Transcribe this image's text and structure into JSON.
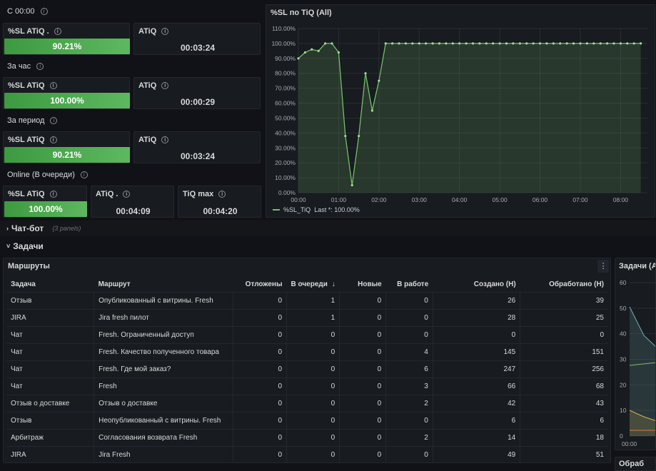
{
  "rows": {
    "since_midnight": "С 00:00",
    "per_hour": "За час",
    "per_period": "За период",
    "online": "Online (В очереди)"
  },
  "stats": {
    "r1_sl_title": "%SL ATiQ .",
    "r1_sl_value": "90.21%",
    "r1_sl_fill": 0.9021,
    "r1_atiq_title": "ATiQ",
    "r1_atiq_value": "00:03:24",
    "r2_sl_title": "%SL ATiQ",
    "r2_sl_value": "100.00%",
    "r2_sl_fill": 1.0,
    "r2_atiq_title": "ATiQ",
    "r2_atiq_value": "00:00:29",
    "r3_sl_title": "%SL ATiQ",
    "r3_sl_value": "90.21%",
    "r3_sl_fill": 0.9021,
    "r3_atiq_title": "ATiQ",
    "r3_atiq_value": "00:03:24",
    "r4_sl_title": "%SL ATiQ",
    "r4_sl_value": "100.00%",
    "r4_sl_fill": 1.0,
    "r4_atiq_title": "ATiQ .",
    "r4_atiq_value": "00:04:09",
    "r4_tiqmax_title": "TiQ max",
    "r4_tiqmax_value": "00:04:20"
  },
  "sl_chart": {
    "title": "%SL по TiQ (All)",
    "legend": "%SL_TiQ",
    "legend_last": "Last *: 100.00%"
  },
  "chart_data": {
    "type": "line",
    "title": "%SL по TiQ (All)",
    "xlabel": "",
    "ylabel": "",
    "x_ticks": [
      "00:00",
      "01:00",
      "02:00",
      "03:00",
      "04:00",
      "05:00",
      "06:00",
      "07:00",
      "08:00"
    ],
    "y_ticks": [
      "0.00%",
      "10.00%",
      "20.00%",
      "30.00%",
      "40.00%",
      "50.00%",
      "60.00%",
      "70.00%",
      "80.00%",
      "90.00%",
      "100.00%",
      "110.00%"
    ],
    "ylim": [
      0,
      110
    ],
    "xlim_minutes": [
      0,
      520
    ],
    "series": [
      {
        "name": "%SL_TiQ",
        "color": "#73bf69",
        "x_minutes": [
          0,
          10,
          20,
          30,
          40,
          50,
          60,
          70,
          80,
          90,
          100,
          110,
          120,
          130,
          140,
          150,
          160,
          170,
          180,
          190,
          200,
          210,
          220,
          230,
          240,
          250,
          260,
          270,
          280,
          290,
          300,
          310,
          320,
          330,
          340,
          350,
          360,
          370,
          380,
          390,
          400,
          410,
          420,
          430,
          440,
          450,
          460,
          470,
          480,
          490,
          500,
          510
        ],
        "values": [
          90,
          94,
          96,
          95,
          100,
          100,
          94,
          38,
          5,
          38,
          80,
          55,
          75,
          100,
          100,
          100,
          100,
          100,
          100,
          100,
          100,
          100,
          100,
          100,
          100,
          100,
          100,
          100,
          100,
          100,
          100,
          100,
          100,
          100,
          100,
          100,
          100,
          100,
          100,
          100,
          100,
          100,
          100,
          100,
          100,
          100,
          100,
          100,
          100,
          100,
          100,
          100
        ]
      }
    ],
    "grid": true,
    "legend_position": "bottom-left"
  },
  "sections": {
    "chatbot": "Чат-бот",
    "chatbot_sub": "(3 panels)",
    "tasks": "Задачи"
  },
  "routes": {
    "title": "Маршруты",
    "columns": [
      "Задача",
      "Маршрут",
      "Отложены",
      "В очереди",
      "Новые",
      "В работе",
      "Создано (Н)",
      "Обработано (Н)"
    ],
    "sort_arrow": "↓",
    "rows": [
      [
        "Отзыв",
        "Опубликованный с витрины. Fresh",
        "0",
        "1",
        "0",
        "0",
        "26",
        "39"
      ],
      [
        "JIRA",
        "Jira fresh пилот",
        "0",
        "1",
        "0",
        "0",
        "28",
        "25"
      ],
      [
        "Чат",
        "Fresh. Ограниченный доступ",
        "0",
        "0",
        "0",
        "0",
        "0",
        "0"
      ],
      [
        "Чат",
        "Fresh. Качество полученного товара",
        "0",
        "0",
        "0",
        "4",
        "145",
        "151"
      ],
      [
        "Чат",
        "Fresh. Где мой заказ?",
        "0",
        "0",
        "0",
        "6",
        "247",
        "256"
      ],
      [
        "Чат",
        "Fresh",
        "0",
        "0",
        "0",
        "3",
        "66",
        "68"
      ],
      [
        "Отзыв о доставке",
        "Отзыв о доставке",
        "0",
        "0",
        "0",
        "2",
        "42",
        "43"
      ],
      [
        "Отзыв",
        "Неопубликованный с витрины. Fresh",
        "0",
        "0",
        "0",
        "0",
        "6",
        "6"
      ],
      [
        "Арбитраж",
        "Согласования возврата Fresh",
        "0",
        "0",
        "0",
        "2",
        "14",
        "18"
      ],
      [
        "JIRA",
        "Jira Fresh",
        "0",
        "0",
        "0",
        "0",
        "49",
        "51"
      ]
    ]
  },
  "tasks_panel": {
    "title": "Задачи (All",
    "y_ticks": [
      "60",
      "50",
      "40",
      "30",
      "20",
      "10",
      "0"
    ],
    "x_tick": "00:00",
    "next_title": "Обраб"
  },
  "colors": {
    "bg": "#111217",
    "panel": "#181b1f",
    "green": "#73bf69",
    "border": "#24272e"
  },
  "icons": {
    "info": "info-icon",
    "menu": "kebab-menu-icon",
    "chevron_right": "chevron-right-icon",
    "chevron_down": "chevron-down-icon"
  }
}
